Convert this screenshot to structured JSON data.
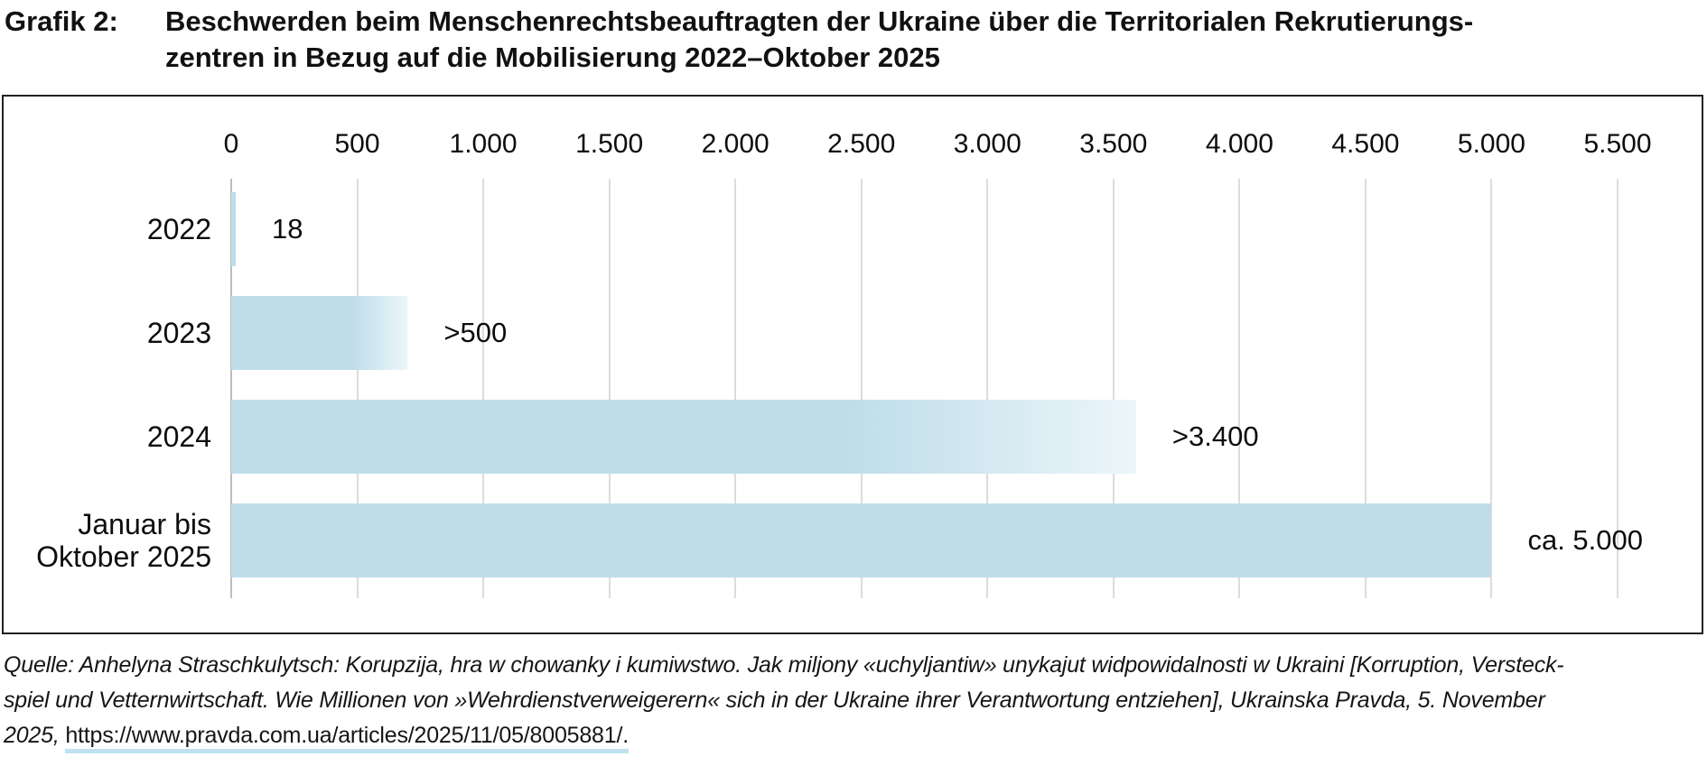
{
  "header": {
    "label": "Grafik 2:",
    "title": "Beschwerden beim Menschenrechtsbeauftragten der Ukraine über die Territorialen Rekrutierungs-\nzentren in Bezug auf die Mobilisierung 2022–Oktober 2025"
  },
  "chart_data": {
    "type": "bar",
    "orientation": "horizontal",
    "title": "Beschwerden beim Menschenrechtsbeauftragten der Ukraine über die Territorialen Rekrutierungszentren in Bezug auf die Mobilisierung 2022–Oktober 2025",
    "categories": [
      "2022",
      "2023",
      "2024",
      "Januar bis\nOktober 2025"
    ],
    "values": [
      18,
      500,
      3400,
      5000
    ],
    "value_labels": [
      "18",
      ">500",
      ">3.400",
      "ca. 5.000"
    ],
    "bar_extent_units": [
      18,
      700,
      3590,
      5000
    ],
    "fade_tip": [
      false,
      true,
      true,
      false
    ],
    "axis": {
      "position": "top",
      "min": 0,
      "max": 5500,
      "tick_step": 500,
      "tick_labels": [
        "0",
        "500",
        "1.000",
        "1.500",
        "2.000",
        "2.500",
        "3.000",
        "3.500",
        "4.000",
        "4.500",
        "5.000",
        "5.500"
      ]
    },
    "grid": true,
    "legend": false,
    "bar_color": "#bedde9",
    "bar_tip_color": "#ecf6fa"
  },
  "source": {
    "line1": "Quelle: Anhelyna Straschkulytsch: Korupzija, hra w chowanky i kumiwstwo. Jak miljony «uchyljantiw» unykajut widpowidalnosti w Ukraini [Korruption, Versteck-",
    "line2": "spiel und Vetternwirtschaft. Wie Millionen von »Wehrdienstverweigerern« sich in der Ukraine ihrer Verantwortung entziehen], Ukrainska Pravda, 5. November",
    "line3_prefix": "2025, ",
    "link": "https://www.pravda.com.ua/articles/2025/11/05/8005881/."
  }
}
